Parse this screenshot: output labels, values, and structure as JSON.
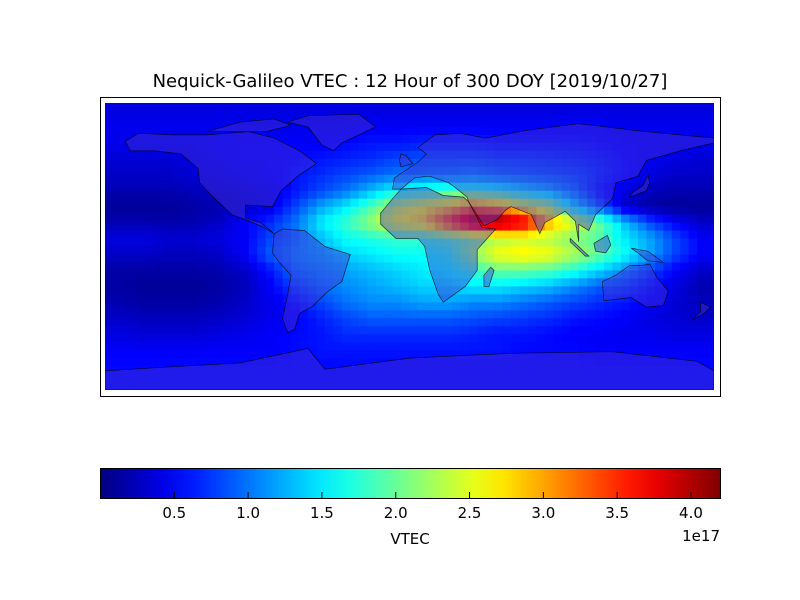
{
  "chart_data": {
    "type": "heatmap",
    "title": "Nequick-Galileo VTEC : 12 Hour of 300 DOY [2019/10/27]",
    "projection": "equirectangular world map with coastlines and country borders",
    "lon": [
      -172.5,
      -157.5,
      -142.5,
      -127.5,
      -112.5,
      -97.5,
      -82.5,
      -67.5,
      -52.5,
      -37.5,
      -22.5,
      -7.5,
      7.5,
      22.5,
      37.5,
      52.5,
      67.5,
      82.5,
      97.5,
      112.5,
      127.5,
      142.5,
      157.5,
      172.5
    ],
    "lat": [
      85,
      75,
      65,
      55,
      45,
      35,
      25,
      15,
      5,
      -5,
      -15,
      -25,
      -35,
      -45,
      -55,
      -65,
      -75,
      -85
    ],
    "values_unit": "1e17",
    "values": [
      [
        0.4,
        0.4,
        0.4,
        0.4,
        0.4,
        0.4,
        0.4,
        0.4,
        0.4,
        0.4,
        0.4,
        0.4,
        0.4,
        0.4,
        0.4,
        0.4,
        0.4,
        0.4,
        0.4,
        0.4,
        0.4,
        0.4,
        0.4,
        0.4
      ],
      [
        0.45,
        0.45,
        0.45,
        0.45,
        0.45,
        0.45,
        0.45,
        0.45,
        0.45,
        0.45,
        0.5,
        0.5,
        0.5,
        0.5,
        0.5,
        0.5,
        0.5,
        0.5,
        0.5,
        0.5,
        0.45,
        0.45,
        0.45,
        0.45
      ],
      [
        0.45,
        0.45,
        0.45,
        0.45,
        0.5,
        0.5,
        0.5,
        0.5,
        0.5,
        0.55,
        0.6,
        0.6,
        0.65,
        0.65,
        0.65,
        0.6,
        0.6,
        0.6,
        0.6,
        0.55,
        0.5,
        0.5,
        0.45,
        0.45
      ],
      [
        0.35,
        0.35,
        0.35,
        0.4,
        0.45,
        0.5,
        0.5,
        0.55,
        0.6,
        0.65,
        0.7,
        0.8,
        0.85,
        0.85,
        0.85,
        0.8,
        0.8,
        0.75,
        0.7,
        0.65,
        0.55,
        0.45,
        0.4,
        0.35
      ],
      [
        0.3,
        0.3,
        0.3,
        0.35,
        0.4,
        0.45,
        0.5,
        0.6,
        0.7,
        0.8,
        0.9,
        1.0,
        1.0,
        1.05,
        1.1,
        1.0,
        0.95,
        0.9,
        0.85,
        0.7,
        0.55,
        0.4,
        0.3,
        0.3
      ],
      [
        0.2,
        0.2,
        0.2,
        0.25,
        0.3,
        0.35,
        0.4,
        0.6,
        0.8,
        1.0,
        1.3,
        1.6,
        1.7,
        1.8,
        1.8,
        1.7,
        1.5,
        1.3,
        1.0,
        0.6,
        0.4,
        0.25,
        0.2,
        0.2
      ],
      [
        0.1,
        0.1,
        0.1,
        0.15,
        0.2,
        0.3,
        0.4,
        0.8,
        1.2,
        1.5,
        1.9,
        2.4,
        2.6,
        2.8,
        3.2,
        3.0,
        2.6,
        2.3,
        1.5,
        0.9,
        0.3,
        0.15,
        0.1,
        0.1
      ],
      [
        0.2,
        0.2,
        0.2,
        0.2,
        0.3,
        0.5,
        0.7,
        1.0,
        1.5,
        1.8,
        2.2,
        2.6,
        2.8,
        3.5,
        4.1,
        4.2,
        3.9,
        3.0,
        2.5,
        2.0,
        1.3,
        0.8,
        0.5,
        0.3
      ],
      [
        0.4,
        0.4,
        0.35,
        0.35,
        0.4,
        0.5,
        0.8,
        1.0,
        1.3,
        1.6,
        1.7,
        1.8,
        1.8,
        1.9,
        2.1,
        2.3,
        2.4,
        2.3,
        2.1,
        1.9,
        1.5,
        1.2,
        0.8,
        0.5
      ],
      [
        0.3,
        0.3,
        0.25,
        0.25,
        0.3,
        0.5,
        0.9,
        1.1,
        1.2,
        1.4,
        1.5,
        1.6,
        1.6,
        1.7,
        2.2,
        2.6,
        2.7,
        2.6,
        2.3,
        2.0,
        1.6,
        1.2,
        0.8,
        0.5
      ],
      [
        0.15,
        0.15,
        0.15,
        0.15,
        0.2,
        0.3,
        0.6,
        1.0,
        1.1,
        1.2,
        1.3,
        1.4,
        1.5,
        1.6,
        1.8,
        2.0,
        2.0,
        1.9,
        1.7,
        1.4,
        1.1,
        0.8,
        0.5,
        0.3
      ],
      [
        0.15,
        0.1,
        0.1,
        0.1,
        0.15,
        0.25,
        0.5,
        0.8,
        1.0,
        1.1,
        1.2,
        1.3,
        1.4,
        1.4,
        1.5,
        1.5,
        1.4,
        1.3,
        1.1,
        0.9,
        0.8,
        0.6,
        0.4,
        0.2
      ],
      [
        0.2,
        0.15,
        0.15,
        0.15,
        0.2,
        0.3,
        0.45,
        0.6,
        0.8,
        1.0,
        1.1,
        1.1,
        1.2,
        1.2,
        1.1,
        1.1,
        1.0,
        0.9,
        0.8,
        0.7,
        0.6,
        0.5,
        0.35,
        0.25
      ],
      [
        0.3,
        0.25,
        0.25,
        0.25,
        0.3,
        0.35,
        0.45,
        0.5,
        0.65,
        0.8,
        0.9,
        0.9,
        0.9,
        0.9,
        0.85,
        0.8,
        0.75,
        0.7,
        0.6,
        0.55,
        0.5,
        0.4,
        0.35,
        0.3
      ],
      [
        0.4,
        0.35,
        0.35,
        0.35,
        0.4,
        0.45,
        0.5,
        0.55,
        0.6,
        0.7,
        0.7,
        0.7,
        0.7,
        0.7,
        0.65,
        0.6,
        0.6,
        0.55,
        0.5,
        0.5,
        0.45,
        0.45,
        0.4,
        0.4
      ],
      [
        0.5,
        0.5,
        0.5,
        0.5,
        0.5,
        0.5,
        0.5,
        0.55,
        0.6,
        0.6,
        0.6,
        0.6,
        0.6,
        0.6,
        0.6,
        0.6,
        0.55,
        0.55,
        0.55,
        0.5,
        0.5,
        0.5,
        0.5,
        0.5
      ],
      [
        0.55,
        0.55,
        0.55,
        0.55,
        0.55,
        0.55,
        0.55,
        0.55,
        0.55,
        0.55,
        0.55,
        0.55,
        0.55,
        0.55,
        0.55,
        0.55,
        0.55,
        0.55,
        0.55,
        0.55,
        0.55,
        0.55,
        0.55,
        0.55
      ],
      [
        0.55,
        0.55,
        0.55,
        0.55,
        0.55,
        0.55,
        0.55,
        0.55,
        0.55,
        0.55,
        0.55,
        0.55,
        0.55,
        0.55,
        0.55,
        0.55,
        0.55,
        0.55,
        0.55,
        0.55,
        0.55,
        0.55,
        0.55,
        0.55
      ]
    ],
    "colormap": "jet",
    "vmin": 0.0,
    "vmax": 4.2,
    "colorbar": {
      "label": "VTEC",
      "offset_text": "1e17",
      "ticks": [
        0.5,
        1.0,
        1.5,
        2.0,
        2.5,
        3.0,
        3.5,
        4.0
      ],
      "tick_labels": [
        "0.5",
        "1.0",
        "1.5",
        "2.0",
        "2.5",
        "3.0",
        "3.5",
        "4.0"
      ],
      "placement": "bottom"
    }
  }
}
